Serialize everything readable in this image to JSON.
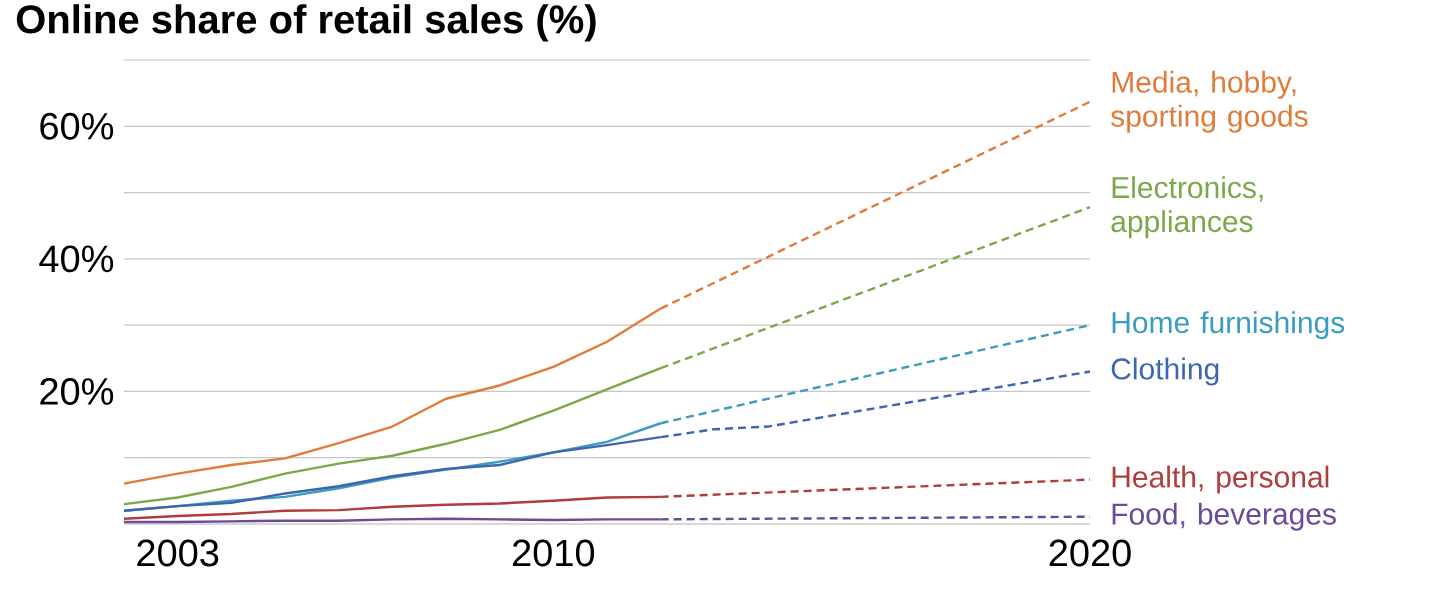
{
  "chart_data": {
    "type": "line",
    "title": "Online share of retail sales (%)",
    "xlim": [
      2002,
      2020
    ],
    "xticks": [
      2003,
      2010,
      2020
    ],
    "ylim": [
      0,
      70
    ],
    "yticks": [
      {
        "value": 10,
        "label": null
      },
      {
        "value": 20,
        "label": "20%"
      },
      {
        "value": 30,
        "label": null
      },
      {
        "value": 40,
        "label": "40%"
      },
      {
        "value": 50,
        "label": null
      },
      {
        "value": 60,
        "label": "60%"
      },
      {
        "value": 70,
        "label": null
      }
    ],
    "grid": "y",
    "x": [
      2002,
      2003,
      2004,
      2005,
      2006,
      2007,
      2008,
      2009,
      2010,
      2011,
      2012
    ],
    "series": [
      {
        "color": "#e07b39",
        "line_style": "solid",
        "values": [
          6.1,
          7.6,
          8.9,
          9.9,
          12.2,
          14.7,
          18.9,
          20.9,
          23.7,
          27.5,
          32.5
        ]
      },
      {
        "name": "Media, hobby, sporting goods",
        "color": "#e07b39",
        "line_style": "dashed",
        "x": [
          2012,
          2020
        ],
        "values": [
          32.5,
          63.7
        ]
      },
      {
        "color": "#7da84a",
        "line_style": "solid",
        "values": [
          3.0,
          4.0,
          5.6,
          7.6,
          9.1,
          10.3,
          12.1,
          14.2,
          17.1,
          20.3,
          23.5
        ]
      },
      {
        "name": "Electronics, appliances",
        "color": "#7da84a",
        "line_style": "dashed",
        "x": [
          2012,
          2020
        ],
        "values": [
          23.5,
          47.8
        ]
      },
      {
        "color": "#3a9cc0",
        "line_style": "solid",
        "values": [
          2.0,
          2.7,
          3.5,
          4.1,
          5.4,
          7.0,
          8.2,
          9.4,
          10.8,
          12.4,
          15.2
        ]
      },
      {
        "name": "Home furnishings",
        "color": "#3a9cc0",
        "line_style": "dashed",
        "x": [
          2012,
          2020
        ],
        "values": [
          15.2,
          30.0
        ]
      },
      {
        "color": "#3d66ae",
        "line_style": "solid",
        "values": [
          2.0,
          2.7,
          3.2,
          4.6,
          5.7,
          7.2,
          8.3,
          8.9,
          10.8,
          11.9,
          13.1
        ]
      },
      {
        "name": "Clothing",
        "color": "#3d66ae",
        "line_style": "dashed",
        "x": [
          2012,
          2013,
          2014,
          2020
        ],
        "values": [
          13.1,
          14.3,
          14.7,
          23.0
        ]
      },
      {
        "color": "#b23b3b",
        "line_style": "solid",
        "values": [
          0.8,
          1.2,
          1.5,
          2.0,
          2.1,
          2.6,
          2.9,
          3.1,
          3.5,
          4.0,
          4.1
        ]
      },
      {
        "name": "Health, personal",
        "color": "#b23b3b",
        "line_style": "dashed",
        "x": [
          2012,
          2020
        ],
        "values": [
          4.1,
          6.7
        ]
      },
      {
        "color": "#6b4a9a",
        "line_style": "solid",
        "values": [
          0.3,
          0.3,
          0.4,
          0.5,
          0.5,
          0.7,
          0.8,
          0.7,
          0.6,
          0.7,
          0.7
        ]
      },
      {
        "name": "Food, beverages",
        "color": "#6b4a9a",
        "line_style": "dashed",
        "x": [
          2012,
          2020
        ],
        "values": [
          0.7,
          1.1
        ]
      }
    ]
  }
}
